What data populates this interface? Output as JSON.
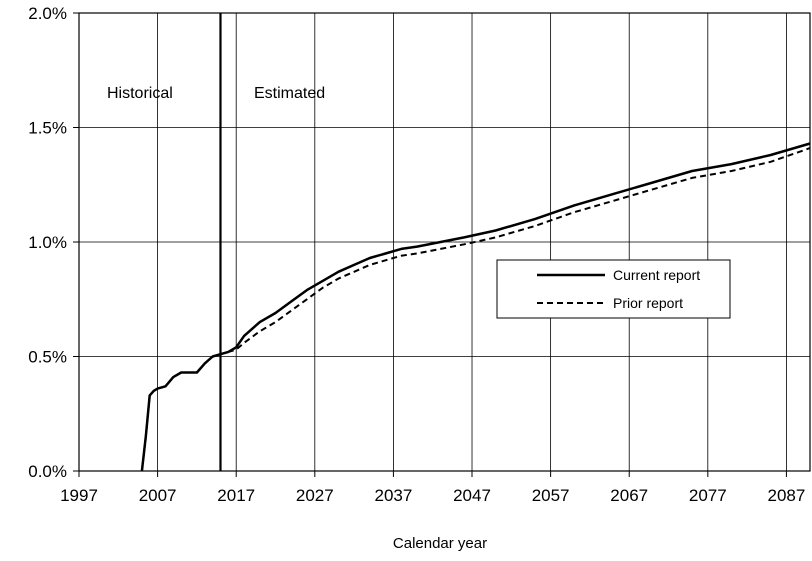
{
  "chart_data": {
    "type": "line",
    "title": "",
    "xlabel": "Calendar year",
    "ylabel": "",
    "xlim": [
      1997,
      2090
    ],
    "ylim": [
      0,
      2.0
    ],
    "x_ticks": [
      1997,
      2007,
      2017,
      2027,
      2037,
      2047,
      2057,
      2067,
      2077,
      2087
    ],
    "x_tick_labels": [
      "1997",
      "2007",
      "2017",
      "2027",
      "2037",
      "2047",
      "2057",
      "2067",
      "2077",
      "2087"
    ],
    "y_ticks": [
      0,
      0.5,
      1.0,
      1.5,
      2.0
    ],
    "y_tick_labels": [
      "0.0%",
      "0.5%",
      "1.0%",
      "1.5%",
      "2.0%"
    ],
    "grid": true,
    "divider_year": 2015,
    "region_labels": {
      "left": "Historical",
      "right": "Estimated"
    },
    "legend": {
      "placement": "center-right",
      "entries": [
        {
          "label": "Current report",
          "style": "solid"
        },
        {
          "label": "Prior report",
          "style": "dashed"
        }
      ]
    },
    "series": [
      {
        "name": "Current report",
        "style": "solid",
        "x": [
          2005,
          2005.5,
          2006,
          2006.5,
          2007,
          2008,
          2009,
          2010,
          2011,
          2012,
          2013,
          2014,
          2015,
          2016,
          2017,
          2018,
          2020,
          2022,
          2024,
          2026,
          2028,
          2030,
          2032,
          2034,
          2036,
          2038,
          2040,
          2043,
          2046,
          2050,
          2055,
          2060,
          2065,
          2070,
          2075,
          2080,
          2085,
          2090
        ],
        "y": [
          0.0,
          0.15,
          0.33,
          0.35,
          0.36,
          0.37,
          0.41,
          0.43,
          0.43,
          0.43,
          0.47,
          0.5,
          0.51,
          0.52,
          0.54,
          0.59,
          0.65,
          0.69,
          0.74,
          0.79,
          0.83,
          0.87,
          0.9,
          0.93,
          0.95,
          0.97,
          0.98,
          1.0,
          1.02,
          1.05,
          1.1,
          1.16,
          1.21,
          1.26,
          1.31,
          1.34,
          1.38,
          1.43
        ]
      },
      {
        "name": "Prior report",
        "style": "dashed",
        "x": [
          2005,
          2005.5,
          2006,
          2006.5,
          2007,
          2008,
          2009,
          2010,
          2011,
          2012,
          2013,
          2014,
          2015,
          2016,
          2017,
          2018,
          2020,
          2022,
          2024,
          2026,
          2028,
          2030,
          2032,
          2034,
          2036,
          2038,
          2040,
          2043,
          2046,
          2050,
          2055,
          2060,
          2065,
          2070,
          2075,
          2080,
          2085,
          2090
        ],
        "y": [
          0.0,
          0.15,
          0.33,
          0.35,
          0.36,
          0.37,
          0.41,
          0.43,
          0.43,
          0.43,
          0.47,
          0.5,
          0.51,
          0.52,
          0.53,
          0.56,
          0.61,
          0.65,
          0.7,
          0.75,
          0.8,
          0.84,
          0.87,
          0.9,
          0.92,
          0.94,
          0.95,
          0.97,
          0.99,
          1.02,
          1.07,
          1.13,
          1.18,
          1.23,
          1.28,
          1.31,
          1.35,
          1.41
        ]
      }
    ]
  }
}
